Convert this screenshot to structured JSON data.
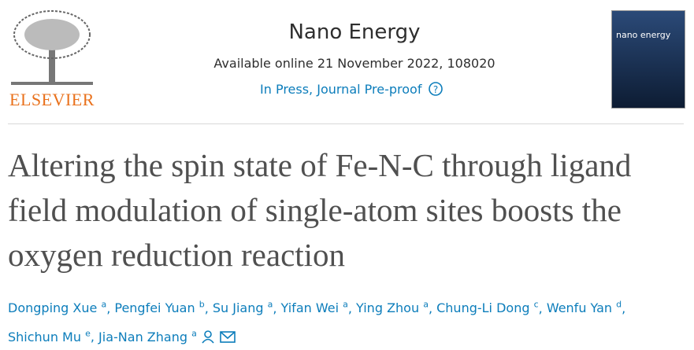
{
  "header": {
    "publisher": "ELSEVIER",
    "journal": "Nano Energy",
    "availability": "Available online 21 November 2022, 108020",
    "status": "In Press, Journal Pre-proof",
    "cover_title": "nano energy"
  },
  "article": {
    "title": "Altering the spin state of Fe-N-C through ligand field modulation of single-atom sites boosts the oxygen reduction reaction",
    "authors": [
      {
        "name": "Dongping Xue",
        "affiliation": "a"
      },
      {
        "name": "Pengfei Yuan",
        "affiliation": "b"
      },
      {
        "name": "Su Jiang",
        "affiliation": "a"
      },
      {
        "name": "Yifan Wei",
        "affiliation": "a"
      },
      {
        "name": "Ying Zhou",
        "affiliation": "a"
      },
      {
        "name": "Chung-Li Dong",
        "affiliation": "c"
      },
      {
        "name": "Wenfu Yan",
        "affiliation": "d"
      },
      {
        "name": "Shichun Mu",
        "affiliation": "e"
      },
      {
        "name": "Jia-Nan Zhang",
        "affiliation": "a"
      }
    ]
  }
}
